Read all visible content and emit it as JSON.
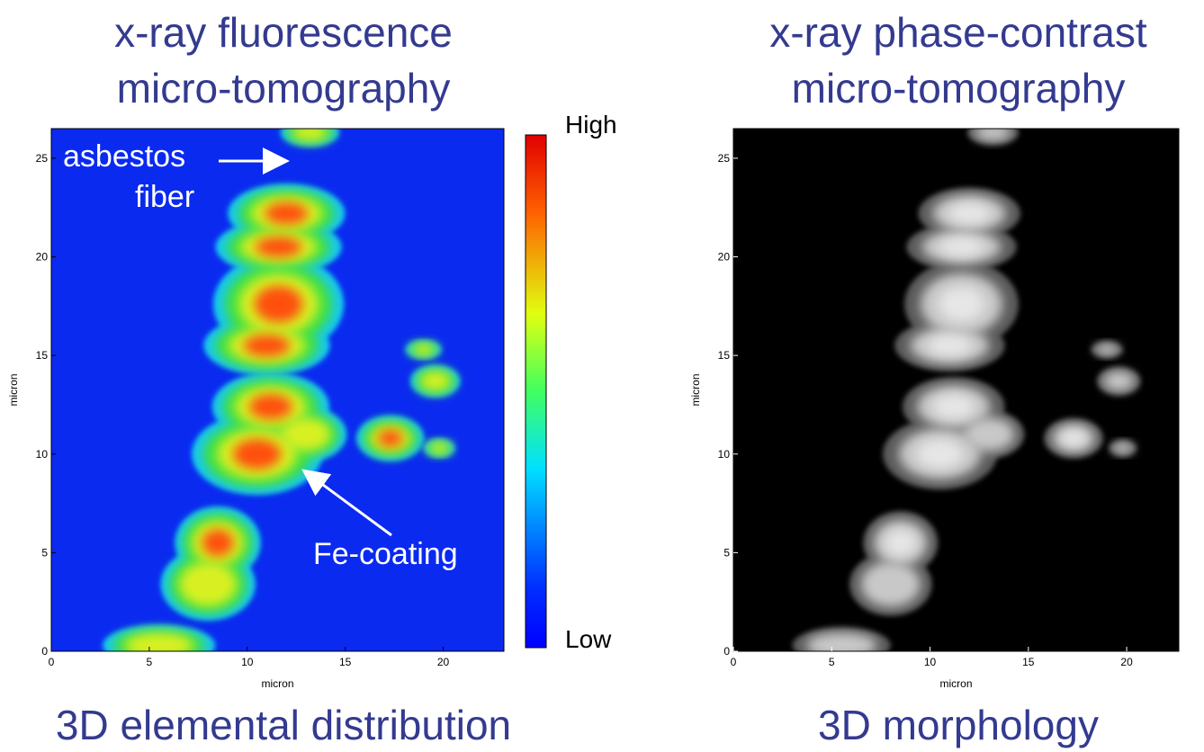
{
  "panels": [
    {
      "title": [
        "x-ray fluorescence",
        "micro-tomography"
      ],
      "caption": "3D elemental distribution",
      "x_label": "micron",
      "y_label": "micron",
      "xticks": [
        0,
        5,
        10,
        15,
        20
      ],
      "yticks": [
        0,
        5,
        10,
        15,
        20,
        25
      ],
      "xlim": [
        0,
        23.1
      ],
      "ylim": [
        0,
        26.5
      ],
      "colorbar": {
        "high": "High",
        "low": "Low"
      },
      "annotations": [
        "asbestos",
        "fiber",
        "Fe-coating"
      ]
    },
    {
      "title": [
        "x-ray phase-contrast",
        "micro-tomography"
      ],
      "caption": "3D morphology",
      "x_label": "micron",
      "y_label": "micron",
      "xticks": [
        0,
        5,
        10,
        15,
        20
      ],
      "yticks": [
        0,
        5,
        10,
        15,
        20,
        25
      ],
      "xlim": [
        0,
        22.65
      ],
      "ylim": [
        0,
        26.5
      ]
    }
  ]
}
